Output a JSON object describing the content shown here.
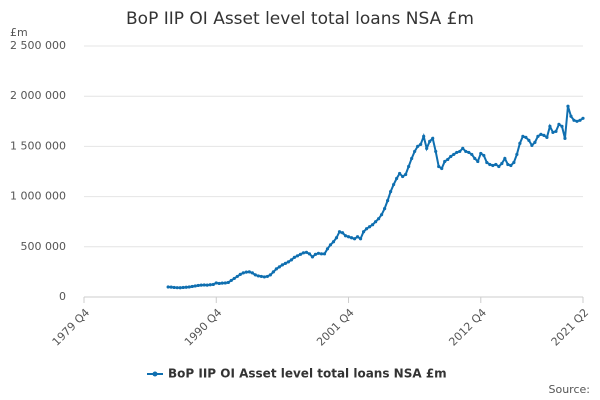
{
  "chart_data": {
    "type": "line",
    "title": "BoP IIP OI Asset level total loans NSA £m",
    "y_label": "£m",
    "source": "Source:",
    "categories": [
      "1979 Q4",
      null,
      null,
      null,
      null,
      null,
      null,
      null,
      null,
      null,
      null,
      null,
      null,
      null,
      null,
      null,
      null,
      null,
      null,
      null,
      null,
      null,
      null,
      null,
      null,
      null,
      null,
      null,
      null,
      null,
      null,
      null,
      null,
      null,
      null,
      null,
      null,
      null,
      null,
      null,
      null,
      null,
      null,
      null,
      "1990 Q4",
      null,
      null,
      null,
      null,
      null,
      null,
      null,
      null,
      null,
      null,
      null,
      null,
      null,
      null,
      null,
      null,
      null,
      null,
      null,
      null,
      null,
      null,
      null,
      null,
      null,
      null,
      null,
      null,
      null,
      null,
      null,
      null,
      null,
      null,
      null,
      null,
      null,
      null,
      null,
      null,
      null,
      null,
      null,
      "2001 Q4",
      null,
      null,
      null,
      null,
      null,
      null,
      null,
      null,
      null,
      null,
      null,
      null,
      null,
      null,
      null,
      null,
      null,
      null,
      null,
      null,
      null,
      null,
      null,
      null,
      null,
      null,
      null,
      null,
      null,
      null,
      null,
      null,
      null,
      null,
      null,
      null,
      null,
      null,
      null,
      null,
      null,
      null,
      null,
      "2012 Q4",
      null,
      null,
      null,
      null,
      null,
      null,
      null,
      null,
      null,
      null,
      null,
      null,
      null,
      null,
      null,
      null,
      null,
      null,
      null,
      null,
      null,
      null,
      null,
      null,
      null,
      null,
      null,
      null,
      null,
      null,
      null,
      null,
      null,
      "2021 Q2"
    ],
    "series": [
      {
        "name": "BoP IIP OI Asset level total loans NSA £m",
        "color": "#0f6fb0",
        "values": [
          null,
          null,
          null,
          null,
          null,
          null,
          null,
          null,
          null,
          null,
          null,
          null,
          null,
          null,
          null,
          null,
          null,
          null,
          null,
          null,
          null,
          null,
          null,
          null,
          null,
          null,
          null,
          null,
          100000,
          98000,
          95000,
          93000,
          92000,
          95000,
          97000,
          100000,
          105000,
          110000,
          115000,
          118000,
          120000,
          118000,
          122000,
          125000,
          140000,
          135000,
          138000,
          140000,
          145000,
          165000,
          185000,
          205000,
          225000,
          240000,
          248000,
          250000,
          240000,
          220000,
          210000,
          205000,
          200000,
          205000,
          220000,
          250000,
          280000,
          300000,
          320000,
          335000,
          350000,
          370000,
          395000,
          410000,
          425000,
          440000,
          445000,
          430000,
          400000,
          425000,
          435000,
          430000,
          430000,
          480000,
          520000,
          550000,
          590000,
          650000,
          640000,
          610000,
          600000,
          590000,
          580000,
          600000,
          580000,
          650000,
          680000,
          700000,
          720000,
          750000,
          780000,
          820000,
          880000,
          960000,
          1050000,
          1120000,
          1180000,
          1230000,
          1200000,
          1220000,
          1300000,
          1380000,
          1450000,
          1500000,
          1520000,
          1600000,
          1480000,
          1550000,
          1580000,
          1450000,
          1300000,
          1280000,
          1350000,
          1370000,
          1400000,
          1420000,
          1440000,
          1450000,
          1480000,
          1450000,
          1440000,
          1420000,
          1380000,
          1350000,
          1430000,
          1410000,
          1340000,
          1320000,
          1310000,
          1320000,
          1300000,
          1330000,
          1380000,
          1320000,
          1310000,
          1340000,
          1420000,
          1530000,
          1600000,
          1590000,
          1560000,
          1510000,
          1540000,
          1600000,
          1620000,
          1610000,
          1590000,
          1700000,
          1640000,
          1650000,
          1720000,
          1700000,
          1580000,
          1900000,
          1800000,
          1760000,
          1750000,
          1760000,
          1780000
        ]
      }
    ],
    "ylim": [
      0,
      2500000
    ],
    "yticks": [
      0,
      {
        "value": 500000,
        "label": "500 000"
      },
      {
        "value": 1000000,
        "label": "1 000 000"
      },
      {
        "value": 1500000,
        "label": "1 500 000"
      },
      {
        "value": 2000000,
        "label": "2 000 000"
      },
      {
        "value": 2500000,
        "label": "2 500 000"
      }
    ],
    "grid": true
  }
}
